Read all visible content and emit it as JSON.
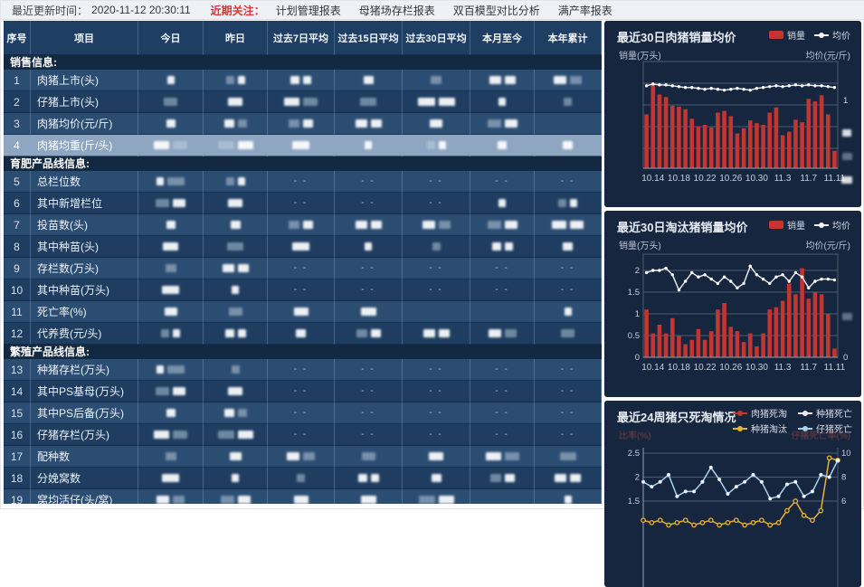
{
  "topbar": {
    "update_label": "最近更新时间：",
    "update_time": "2020-11-12 20:30:11",
    "focus_label": "近期关注：",
    "links": [
      "计划管理报表",
      "母猪场存栏报表",
      "双百模型对比分析",
      "满产率报表"
    ]
  },
  "table": {
    "headers": [
      "序号",
      "项目",
      "今日",
      "昨日",
      "过去7日平均",
      "过去15日平均",
      "过去30日平均",
      "本月至今",
      "本年累计"
    ],
    "redaction_note": "all numeric cell values are blurred out in the screenshot; 'd' = '- -' placeholder, 'bN' = N blurred blocks, 'e' = empty",
    "sections": [
      {
        "title": "销售信息:",
        "rows": [
          {
            "no": "1",
            "label": "肉猪上市(头)",
            "cells": [
              "b1",
              "b2",
              "b2",
              "b1",
              "b1",
              "b2",
              "b2"
            ]
          },
          {
            "no": "2",
            "label": "仔猪上市(头)",
            "cells": [
              "b1",
              "b1",
              "b2",
              "b1",
              "b2",
              "b1",
              "b1"
            ]
          },
          {
            "no": "3",
            "label": "肉猪均价(元/斤)",
            "cells": [
              "b1",
              "b2",
              "b2",
              "b2",
              "b1",
              "b2",
              "e"
            ]
          },
          {
            "no": "4",
            "label": "肉猪均重(斤/头)",
            "cells": [
              "b2",
              "b2",
              "b1",
              "b1",
              "b2",
              "b1",
              "b1"
            ],
            "selected": true
          }
        ]
      },
      {
        "title": "育肥产品线信息:",
        "rows": [
          {
            "no": "5",
            "label": "总栏位数",
            "cells": [
              "b2",
              "b2",
              "d",
              "d",
              "d",
              "d",
              "d"
            ]
          },
          {
            "no": "6",
            "label": "其中新增栏位",
            "cells": [
              "b2",
              "b1",
              "d",
              "d",
              "d",
              "b1",
              "b2"
            ]
          },
          {
            "no": "7",
            "label": "投苗数(头)",
            "cells": [
              "b1",
              "b1",
              "b2",
              "b2",
              "b2",
              "b2",
              "b2"
            ]
          },
          {
            "no": "8",
            "label": "其中种苗(头)",
            "cells": [
              "b1",
              "b1",
              "b1",
              "b1",
              "b1",
              "b2",
              "b1"
            ]
          },
          {
            "no": "9",
            "label": "存栏数(万头)",
            "cells": [
              "b1",
              "b2",
              "d",
              "d",
              "d",
              "d",
              "d"
            ]
          },
          {
            "no": "10",
            "label": "其中种苗(万头)",
            "cells": [
              "b1",
              "b1",
              "d",
              "d",
              "d",
              "d",
              "d"
            ]
          },
          {
            "no": "11",
            "label": "死亡率(%)",
            "cells": [
              "b1",
              "b1",
              "b1",
              "b1",
              "e",
              "e",
              "b1"
            ]
          },
          {
            "no": "12",
            "label": "代养费(元/头)",
            "cells": [
              "b2",
              "b2",
              "b1",
              "b2",
              "b2",
              "b2",
              "b1"
            ]
          }
        ]
      },
      {
        "title": "繁殖产品线信息:",
        "rows": [
          {
            "no": "13",
            "label": "种猪存栏(万头)",
            "cells": [
              "b2",
              "b1",
              "d",
              "d",
              "d",
              "d",
              "d"
            ]
          },
          {
            "no": "14",
            "label": "其中PS基母(万头)",
            "cells": [
              "b2",
              "b1",
              "d",
              "d",
              "d",
              "d",
              "d"
            ]
          },
          {
            "no": "15",
            "label": "其中PS后备(万头)",
            "cells": [
              "b1",
              "b2",
              "d",
              "d",
              "d",
              "d",
              "d"
            ]
          },
          {
            "no": "16",
            "label": "仔猪存栏(万头)",
            "cells": [
              "b2",
              "b2",
              "d",
              "d",
              "d",
              "d",
              "d"
            ]
          },
          {
            "no": "17",
            "label": "配种数",
            "cells": [
              "b1",
              "b1",
              "b2",
              "b1",
              "b1",
              "b2",
              "b1"
            ]
          },
          {
            "no": "18",
            "label": "分娩窝数",
            "cells": [
              "b1",
              "b1",
              "b1",
              "b2",
              "b1",
              "b2",
              "b2"
            ]
          },
          {
            "no": "19",
            "label": "窝均活仔(头/窝)",
            "cells": [
              "b2",
              "b2",
              "b1",
              "b1",
              "b2",
              "e",
              "b1"
            ]
          }
        ]
      }
    ]
  },
  "chart_data": [
    {
      "type": "bar",
      "title": "最近30日肉猪销量均价",
      "ylabel_left": "销量(万头)",
      "ylabel_right": "均价(元/斤)",
      "legend": [
        "销量",
        "均价"
      ],
      "categories": [
        "10.13",
        "10.14",
        "10.15",
        "10.16",
        "10.17",
        "10.18",
        "10.19",
        "10.20",
        "10.21",
        "10.22",
        "10.23",
        "10.24",
        "10.25",
        "10.26",
        "10.27",
        "10.28",
        "10.29",
        "10.30",
        "10.31",
        "11.1",
        "11.2",
        "11.3",
        "11.4",
        "11.5",
        "11.6",
        "11.7",
        "11.8",
        "11.9",
        "11.10",
        "11.11"
      ],
      "x_tick_labels": [
        "10.14",
        "10.18",
        "10.22",
        "10.26",
        "10.30",
        "11.3",
        "11.7",
        "11.11"
      ],
      "series": [
        {
          "name": "销量",
          "kind": "bar",
          "color": "#c23531",
          "unit": "relative 0-100 (y-axis numbers blurred in screenshot)",
          "values": [
            62,
            97,
            85,
            82,
            72,
            71,
            68,
            57,
            48,
            50,
            47,
            64,
            66,
            60,
            40,
            46,
            55,
            52,
            50,
            64,
            70,
            38,
            42,
            56,
            53,
            80,
            77,
            84,
            62,
            20
          ]
        },
        {
          "name": "均价",
          "kind": "line",
          "color": "#eef3f8",
          "unit": "relative 0-100 (y-axis numbers blurred in screenshot)",
          "values": [
            94,
            96,
            95,
            95,
            94,
            93,
            92,
            92,
            91,
            90,
            91,
            90,
            89,
            90,
            91,
            90,
            89,
            91,
            92,
            93,
            94,
            93,
            94,
            95,
            94,
            95,
            94,
            94,
            93,
            92
          ]
        }
      ],
      "right_axis_visible_tick": "1",
      "note": "most axis tick numbers are redacted/blurred in the screenshot"
    },
    {
      "type": "bar",
      "title": "最近30日淘汰猪销量均价",
      "ylabel_left": "销量(万头)",
      "ylabel_right": "均价(元/斤)",
      "legend": [
        "销量",
        "均价"
      ],
      "categories": [
        "10.13",
        "10.14",
        "10.15",
        "10.16",
        "10.17",
        "10.18",
        "10.19",
        "10.20",
        "10.21",
        "10.22",
        "10.23",
        "10.24",
        "10.25",
        "10.26",
        "10.27",
        "10.28",
        "10.29",
        "10.30",
        "10.31",
        "11.1",
        "11.2",
        "11.3",
        "11.4",
        "11.5",
        "11.6",
        "11.7",
        "11.8",
        "11.9",
        "11.10",
        "11.11"
      ],
      "x_tick_labels": [
        "10.14",
        "10.18",
        "10.22",
        "10.26",
        "10.30",
        "11.3",
        "11.7",
        "11.11"
      ],
      "ylim_left": [
        0,
        2
      ],
      "y_ticks_left": [
        "2",
        "1.5",
        "1",
        "0.5",
        "0"
      ],
      "right_axis_visible_tick": "0",
      "series": [
        {
          "name": "销量",
          "kind": "bar",
          "color": "#c23531",
          "values": [
            1.1,
            0.55,
            0.75,
            0.55,
            0.9,
            0.5,
            0.3,
            0.4,
            0.65,
            0.4,
            0.6,
            1.1,
            1.25,
            0.7,
            0.6,
            0.35,
            0.55,
            0.25,
            0.55,
            1.1,
            1.15,
            1.3,
            1.7,
            1.45,
            2.05,
            1.35,
            1.5,
            1.45,
            1.0,
            0.2
          ]
        },
        {
          "name": "均价",
          "kind": "line",
          "color": "#eef3f8",
          "values": [
            1.95,
            2.0,
            2.0,
            2.05,
            1.9,
            1.55,
            1.75,
            1.95,
            1.85,
            1.9,
            1.8,
            1.7,
            1.85,
            1.75,
            1.6,
            1.7,
            2.1,
            1.9,
            1.8,
            1.7,
            1.85,
            1.9,
            1.75,
            1.95,
            1.85,
            1.6,
            1.75,
            1.8,
            1.8,
            1.78
          ]
        }
      ]
    },
    {
      "type": "line",
      "title": "最近24周猪只死淘情况",
      "ylabel_left": "比率(%)",
      "ylabel_right": "仔猪死亡率(%)",
      "legend": [
        "肉猪死淘",
        "种猪死亡",
        "种猪淘汰",
        "仔猪死亡"
      ],
      "y_ticks_left": [
        "2.5",
        "2",
        "1.5"
      ],
      "y_ticks_right": [
        "10",
        "8",
        "6"
      ],
      "weeks": 24,
      "series": [
        {
          "name": "肉猪死淘",
          "color": "#c23531",
          "axis": "left",
          "values": [],
          "note": "curve below visible crop of screenshot"
        },
        {
          "name": "种猪死亡",
          "color": "#e9edf3",
          "axis": "left",
          "values": [],
          "note": "curve below visible crop of screenshot"
        },
        {
          "name": "种猪淘汰",
          "color": "#e8b339",
          "axis": "left",
          "values": [
            1.1,
            1.05,
            1.1,
            1.0,
            1.05,
            1.1,
            1.0,
            1.05,
            1.1,
            1.0,
            1.05,
            1.1,
            1.0,
            1.05,
            1.1,
            1.0,
            1.05,
            1.3,
            1.5,
            1.2,
            1.1,
            1.3,
            2.4,
            2.35
          ]
        },
        {
          "name": "仔猪死亡",
          "color": "#a9d2ee",
          "axis": "right",
          "values": [
            7.6,
            7.2,
            7.6,
            8.2,
            6.4,
            6.8,
            6.8,
            7.6,
            8.8,
            7.8,
            6.6,
            7.2,
            7.6,
            8.2,
            7.6,
            6.2,
            6.4,
            7.4,
            7.6,
            6.4,
            6.8,
            8.2,
            8.0,
            9.4
          ]
        }
      ],
      "note": "chart is cut off at the bottom edge of the screenshot"
    }
  ],
  "colors": {
    "bar_red": "#c23531",
    "panel_bg": "#16263f",
    "row_light": "#2b4d72",
    "row_dark": "#1e3d60",
    "row_selected": "#8ea6c1",
    "header_bg": "#1e3e63",
    "section_bg": "#122941",
    "focus_red": "#d8373a",
    "yellow_line": "#e8b339",
    "blue_line": "#a9d2ee"
  }
}
